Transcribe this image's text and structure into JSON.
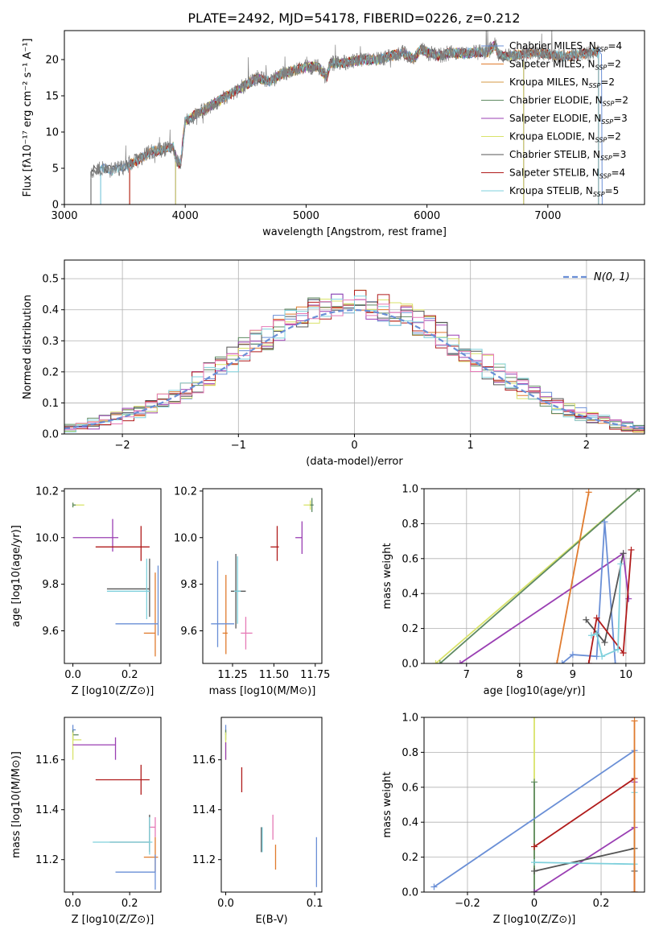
{
  "figure": {
    "title": "PLATE=2492, MJD=54178, FIBERID=0226, z=0.212"
  },
  "chart_data": [
    {
      "id": "spectrum",
      "type": "line",
      "xlabel": "wavelength [Angstrom, rest frame]",
      "ylabel": "Flux [fλ10⁻¹⁷ erg cm⁻² s⁻¹ A⁻¹]",
      "xlim": [
        3000,
        7800
      ],
      "ylim": [
        0,
        24
      ],
      "xticks": [
        3000,
        4000,
        5000,
        6000,
        7000
      ],
      "yticks": [
        0,
        5,
        10,
        15,
        20
      ],
      "grid": false,
      "legend_position": "top-right",
      "series": [
        {
          "label": "Chabrier MILES, N_SSP=4",
          "color": "#6a8fd6",
          "x_range": [
            3300,
            7450
          ]
        },
        {
          "label": "Salpeter MILES, N_SSP=2",
          "color": "#e07b2e",
          "x_range": [
            3540,
            7420
          ]
        },
        {
          "label": "Kroupa MILES, N_SSP=2",
          "color": "#d49a44",
          "x_range": [
            3540,
            7420
          ]
        },
        {
          "label": "Chabrier ELODIE, N_SSP=2",
          "color": "#5e8a62",
          "x_range": [
            3920,
            6800
          ]
        },
        {
          "label": "Salpeter ELODIE, N_SSP=3",
          "color": "#9a3fb3",
          "x_range": [
            3920,
            6800
          ]
        },
        {
          "label": "Kroupa ELODIE, N_SSP=2",
          "color": "#d9e36a",
          "x_range": [
            3920,
            6800
          ]
        },
        {
          "label": "Chabrier STELIB, N_SSP=3",
          "color": "#555555",
          "x_range": [
            3220,
            7420
          ]
        },
        {
          "label": "Salpeter STELIB, N_SSP=4",
          "color": "#b01b1b",
          "x_range": [
            3540,
            7420
          ]
        },
        {
          "label": "Kroupa STELIB, N_SSP=5",
          "color": "#7fd0dc",
          "x_range": [
            3300,
            7420
          ]
        }
      ],
      "observed_flux": {
        "color": "#808080",
        "x": [
          3220,
          3300,
          3400,
          3500,
          3600,
          3700,
          3800,
          3900,
          3930,
          3960,
          4000,
          4100,
          4200,
          4300,
          4400,
          4500,
          4600,
          4700,
          4800,
          4900,
          5000,
          5100,
          5170,
          5200,
          5300,
          5400,
          5500,
          5600,
          5700,
          5800,
          5890,
          5950,
          6000,
          6100,
          6200,
          6300,
          6400,
          6500,
          6563,
          6600,
          6700,
          6800,
          6900,
          7000,
          7100,
          7200,
          7300,
          7420
        ],
        "y": [
          4.6,
          5.0,
          4.7,
          5.2,
          6.0,
          7.2,
          7.5,
          8.0,
          6.0,
          5.5,
          11.5,
          12.5,
          13.5,
          14.5,
          15.5,
          16.5,
          17.5,
          17.0,
          18.0,
          18.5,
          19.0,
          19.0,
          17.5,
          19.5,
          19.5,
          19.8,
          20.0,
          20.0,
          20.5,
          21.0,
          20.0,
          21.5,
          21.0,
          20.5,
          21.0,
          20.8,
          21.0,
          21.0,
          22.0,
          20.5,
          20.5,
          20.8,
          21.0,
          20.8,
          20.5,
          20.5,
          20.8,
          21.0
        ]
      }
    },
    {
      "id": "residuals",
      "type": "histogram",
      "xlabel": "(data-model)/error",
      "ylabel": "Normed distribution",
      "xlim": [
        -2.5,
        2.5
      ],
      "ylim": [
        0,
        0.56
      ],
      "xticks": [
        -2,
        -1,
        0,
        1,
        2
      ],
      "yticks": [
        0.0,
        0.1,
        0.2,
        0.3,
        0.4,
        0.5
      ],
      "grid": true,
      "legend": [
        {
          "label": "N(0, 1)",
          "color": "#6a8fd6",
          "style": "dashed"
        }
      ],
      "legend_position": "top-right",
      "bin_width": 0.1,
      "bin_start": -2.5,
      "reference_curve": {
        "type": "normal",
        "mean": 0,
        "sigma": 1
      }
    },
    {
      "id": "age-vs-metallicity",
      "type": "errorbar",
      "xlabel": "Z [log10(Z/Z⊙)]",
      "ylabel": "age [log10(age/yr)]",
      "xlim": [
        -0.03,
        0.31
      ],
      "ylim": [
        9.46,
        10.21
      ],
      "xticks": [
        0.0,
        0.2
      ],
      "yticks": [
        9.6,
        9.8,
        10.0,
        10.2
      ],
      "grid": false,
      "points": [
        {
          "x": 0.0,
          "xerr": [
            0.0,
            0.04
          ],
          "y": 10.14,
          "yerr": [
            0.01,
            0.01
          ],
          "color": "#d9e36a"
        },
        {
          "x": 0.0,
          "xerr": [
            0.0,
            0.01
          ],
          "y": 10.14,
          "yerr": [
            0.01,
            0.01
          ],
          "color": "#5e8a62"
        },
        {
          "x": 0.14,
          "xerr": [
            0.14,
            0.02
          ],
          "y": 10.0,
          "yerr": [
            0.06,
            0.08
          ],
          "color": "#9a3fb3"
        },
        {
          "x": 0.24,
          "xerr": [
            0.16,
            0.03
          ],
          "y": 9.96,
          "yerr": [
            0.06,
            0.09
          ],
          "color": "#b01b1b"
        },
        {
          "x": 0.27,
          "xerr": [
            0.15,
            0.0
          ],
          "y": 9.78,
          "yerr": [
            0.12,
            0.13
          ],
          "color": "#555555"
        },
        {
          "x": 0.26,
          "xerr": [
            0.14,
            0.01
          ],
          "y": 9.77,
          "yerr": [
            0.12,
            0.14
          ],
          "color": "#7fd0dc"
        },
        {
          "x": 0.29,
          "xerr": [
            0.04,
            0.0
          ],
          "y": 9.59,
          "yerr": [
            0.1,
            0.26
          ],
          "color": "#e07b2e"
        },
        {
          "x": 0.3,
          "xerr": [
            0.15,
            0.0
          ],
          "y": 9.63,
          "yerr": [
            0.05,
            0.25
          ],
          "color": "#6a8fd6"
        }
      ]
    },
    {
      "id": "age-vs-mass",
      "type": "errorbar",
      "xlabel": "mass [log10(M/M⊙)]",
      "ylabel": "",
      "xlim": [
        11.07,
        11.79
      ],
      "ylim": [
        9.46,
        10.21
      ],
      "xticks": [
        11.25,
        11.5,
        11.75
      ],
      "yticks": [
        9.6,
        9.8,
        10.0,
        10.2
      ],
      "grid": false,
      "points": [
        {
          "x": 11.72,
          "xerr": [
            0.04,
            0.01
          ],
          "y": 10.14,
          "yerr": [
            0.02,
            0.02
          ],
          "color": "#d9e36a"
        },
        {
          "x": 11.73,
          "xerr": [
            0.01,
            0.01
          ],
          "y": 10.14,
          "yerr": [
            0.03,
            0.03
          ],
          "color": "#5e8a62"
        },
        {
          "x": 11.67,
          "xerr": [
            0.04,
            0.0
          ],
          "y": 10.0,
          "yerr": [
            0.07,
            0.07
          ],
          "color": "#9a3fb3"
        },
        {
          "x": 11.52,
          "xerr": [
            0.04,
            0.01
          ],
          "y": 9.96,
          "yerr": [
            0.06,
            0.09
          ],
          "color": "#b01b1b"
        },
        {
          "x": 11.27,
          "xerr": [
            0.03,
            0.06
          ],
          "y": 9.77,
          "yerr": [
            0.16,
            0.16
          ],
          "color": "#555555"
        },
        {
          "x": 11.28,
          "xerr": [
            0.02,
            0.02
          ],
          "y": 9.77,
          "yerr": [
            0.14,
            0.15
          ],
          "color": "#7fd0dc"
        },
        {
          "x": 11.33,
          "xerr": [
            0.03,
            0.04
          ],
          "y": 9.59,
          "yerr": [
            0.07,
            0.07
          ],
          "color": "#e67ab6"
        },
        {
          "x": 11.21,
          "xerr": [
            0.02,
            0.01
          ],
          "y": 9.59,
          "yerr": [
            0.09,
            0.25
          ],
          "color": "#e07b2e"
        },
        {
          "x": 11.16,
          "xerr": [
            0.04,
            0.1
          ],
          "y": 9.63,
          "yerr": [
            0.1,
            0.27
          ],
          "color": "#6a8fd6"
        }
      ]
    },
    {
      "id": "mass-weight-vs-age",
      "type": "line",
      "xlabel": "age [log10(age/yr)]",
      "ylabel": "mass weight",
      "xlim": [
        6.2,
        10.35
      ],
      "ylim": [
        0,
        1
      ],
      "xticks": [
        7,
        8,
        9,
        10
      ],
      "yticks": [
        0.0,
        0.2,
        0.4,
        0.6,
        0.8,
        1.0
      ],
      "grid": true,
      "series": [
        {
          "color": "#d9e36a",
          "x": [
            6.42,
            10.25
          ],
          "y": [
            0.0,
            1.0
          ]
        },
        {
          "color": "#5e8a62",
          "x": [
            6.5,
            10.25
          ],
          "y": [
            0.0,
            1.0
          ]
        },
        {
          "color": "#9a3fb3",
          "x": [
            6.88,
            9.95,
            10.05
          ],
          "y": [
            0.0,
            0.63,
            0.37
          ]
        },
        {
          "color": "#e07b2e",
          "x": [
            8.7,
            9.3
          ],
          "y": [
            0.0,
            0.98
          ]
        },
        {
          "color": "#6a8fd6",
          "x": [
            8.8,
            9.0,
            9.45,
            9.6,
            9.8
          ],
          "y": [
            0.0,
            0.05,
            0.04,
            0.81,
            0.0
          ]
        },
        {
          "color": "#555555",
          "x": [
            9.25,
            9.6,
            9.95
          ],
          "y": [
            0.25,
            0.12,
            0.63
          ]
        },
        {
          "color": "#b01b1b",
          "x": [
            9.3,
            9.45,
            9.95,
            10.1
          ],
          "y": [
            0.0,
            0.26,
            0.06,
            0.65
          ]
        },
        {
          "color": "#7fd0dc",
          "x": [
            9.35,
            9.45,
            9.55,
            9.85,
            9.9
          ],
          "y": [
            0.16,
            0.17,
            0.04,
            0.08,
            0.57
          ]
        }
      ]
    },
    {
      "id": "mass-vs-metallicity",
      "type": "errorbar",
      "xlabel": "Z [log10(Z/Z⊙)]",
      "ylabel": "mass [log10(M/M⊙)]",
      "xlim": [
        -0.03,
        0.31
      ],
      "ylim": [
        11.07,
        11.77
      ],
      "xticks": [
        0.0,
        0.2
      ],
      "yticks": [
        11.2,
        11.4,
        11.6
      ],
      "grid": false,
      "points": [
        {
          "x": 0.0,
          "xerr": [
            0.0,
            0.01
          ],
          "y": 11.72,
          "yerr": [
            0.02,
            0.02
          ],
          "color": "#6a8fd6"
        },
        {
          "x": 0.0,
          "xerr": [
            0.0,
            0.02
          ],
          "y": 11.7,
          "yerr": [
            0.02,
            0.02
          ],
          "color": "#5e8a62"
        },
        {
          "x": 0.0,
          "xerr": [
            0.0,
            0.03
          ],
          "y": 11.68,
          "yerr": [
            0.08,
            0.03
          ],
          "color": "#d9e36a"
        },
        {
          "x": 0.15,
          "xerr": [
            0.15,
            0.0
          ],
          "y": 11.66,
          "yerr": [
            0.06,
            0.03
          ],
          "color": "#9a3fb3"
        },
        {
          "x": 0.24,
          "xerr": [
            0.16,
            0.03
          ],
          "y": 11.52,
          "yerr": [
            0.06,
            0.06
          ],
          "color": "#b01b1b"
        },
        {
          "x": 0.29,
          "xerr": [
            0.02,
            0.0
          ],
          "y": 11.33,
          "yerr": [
            0.04,
            0.04
          ],
          "color": "#e67ab6"
        },
        {
          "x": 0.27,
          "xerr": [
            0.14,
            0.0
          ],
          "y": 11.27,
          "yerr": [
            0.04,
            0.11
          ],
          "color": "#555555"
        },
        {
          "x": 0.27,
          "xerr": [
            0.2,
            0.01
          ],
          "y": 11.27,
          "yerr": [
            0.05,
            0.1
          ],
          "color": "#7fd0dc"
        },
        {
          "x": 0.29,
          "xerr": [
            0.04,
            0.01
          ],
          "y": 11.21,
          "yerr": [
            0.06,
            0.08
          ],
          "color": "#e07b2e"
        },
        {
          "x": 0.29,
          "xerr": [
            0.14,
            0.0
          ],
          "y": 11.15,
          "yerr": [
            0.07,
            0.07
          ],
          "color": "#6a8fd6"
        }
      ]
    },
    {
      "id": "mass-vs-extinction",
      "type": "errorbar",
      "xlabel": "E(B-V)",
      "ylabel": "",
      "xlim": [
        -0.005,
        0.108
      ],
      "ylim": [
        11.07,
        11.77
      ],
      "xticks": [
        0.0,
        0.1
      ],
      "yticks": [
        11.2,
        11.4,
        11.6
      ],
      "grid": false,
      "points": [
        {
          "x": 0.0,
          "y": 11.72,
          "yerr": [
            0.02,
            0.02
          ],
          "color": "#6a8fd6"
        },
        {
          "x": 0.0,
          "y": 11.7,
          "yerr": [
            0.02,
            0.02
          ],
          "color": "#5e8a62"
        },
        {
          "x": 0.0,
          "y": 11.68,
          "yerr": [
            0.08,
            0.03
          ],
          "color": "#d9e36a"
        },
        {
          "x": 0.0,
          "y": 11.64,
          "yerr": [
            0.04,
            0.03
          ],
          "color": "#9a3fb3"
        },
        {
          "x": 0.018,
          "y": 11.52,
          "yerr": [
            0.05,
            0.05
          ],
          "color": "#b01b1b"
        },
        {
          "x": 0.053,
          "y": 11.33,
          "yerr": [
            0.05,
            0.05
          ],
          "color": "#e67ab6"
        },
        {
          "x": 0.04,
          "y": 11.28,
          "yerr": [
            0.05,
            0.05
          ],
          "color": "#555555"
        },
        {
          "x": 0.041,
          "y": 11.28,
          "yerr": [
            0.05,
            0.05
          ],
          "color": "#7fd0dc"
        },
        {
          "x": 0.056,
          "y": 11.21,
          "yerr": [
            0.05,
            0.05
          ],
          "color": "#e07b2e"
        },
        {
          "x": 0.102,
          "y": 11.2,
          "yerr": [
            0.11,
            0.09
          ],
          "color": "#6a8fd6"
        }
      ]
    },
    {
      "id": "mass-weight-vs-metallicity",
      "type": "line",
      "xlabel": "Z [log10(Z/Z⊙)]",
      "ylabel": "mass weight",
      "xlim": [
        -0.33,
        0.33
      ],
      "ylim": [
        0,
        1
      ],
      "xticks": [
        -0.2,
        0.0,
        0.2
      ],
      "yticks": [
        0.0,
        0.2,
        0.4,
        0.6,
        0.8,
        1.0
      ],
      "grid": true,
      "series": [
        {
          "color": "#d9e36a",
          "x": [
            0.0,
            0.0
          ],
          "y": [
            0.0,
            1.0
          ]
        },
        {
          "color": "#5e8a62",
          "x": [
            0.0,
            0.0
          ],
          "y": [
            0.0,
            0.63
          ]
        },
        {
          "color": "#6a8fd6",
          "x": [
            -0.3,
            0.3
          ],
          "y": [
            0.03,
            0.81
          ]
        },
        {
          "color": "#b01b1b",
          "x": [
            0.0,
            0.3,
            0.3
          ],
          "y": [
            0.26,
            0.65,
            0.0
          ]
        },
        {
          "color": "#9a3fb3",
          "x": [
            0.0,
            0.3,
            0.3
          ],
          "y": [
            0.0,
            0.37,
            0.63
          ]
        },
        {
          "color": "#555555",
          "x": [
            0.0,
            0.3,
            0.3
          ],
          "y": [
            0.12,
            0.25,
            0.12
          ]
        },
        {
          "color": "#7fd0dc",
          "x": [
            0.0,
            0.3,
            0.3
          ],
          "y": [
            0.17,
            0.16,
            0.57
          ]
        },
        {
          "color": "#e07b2e",
          "x": [
            0.3,
            0.3
          ],
          "y": [
            0.0,
            0.98
          ]
        }
      ]
    }
  ]
}
